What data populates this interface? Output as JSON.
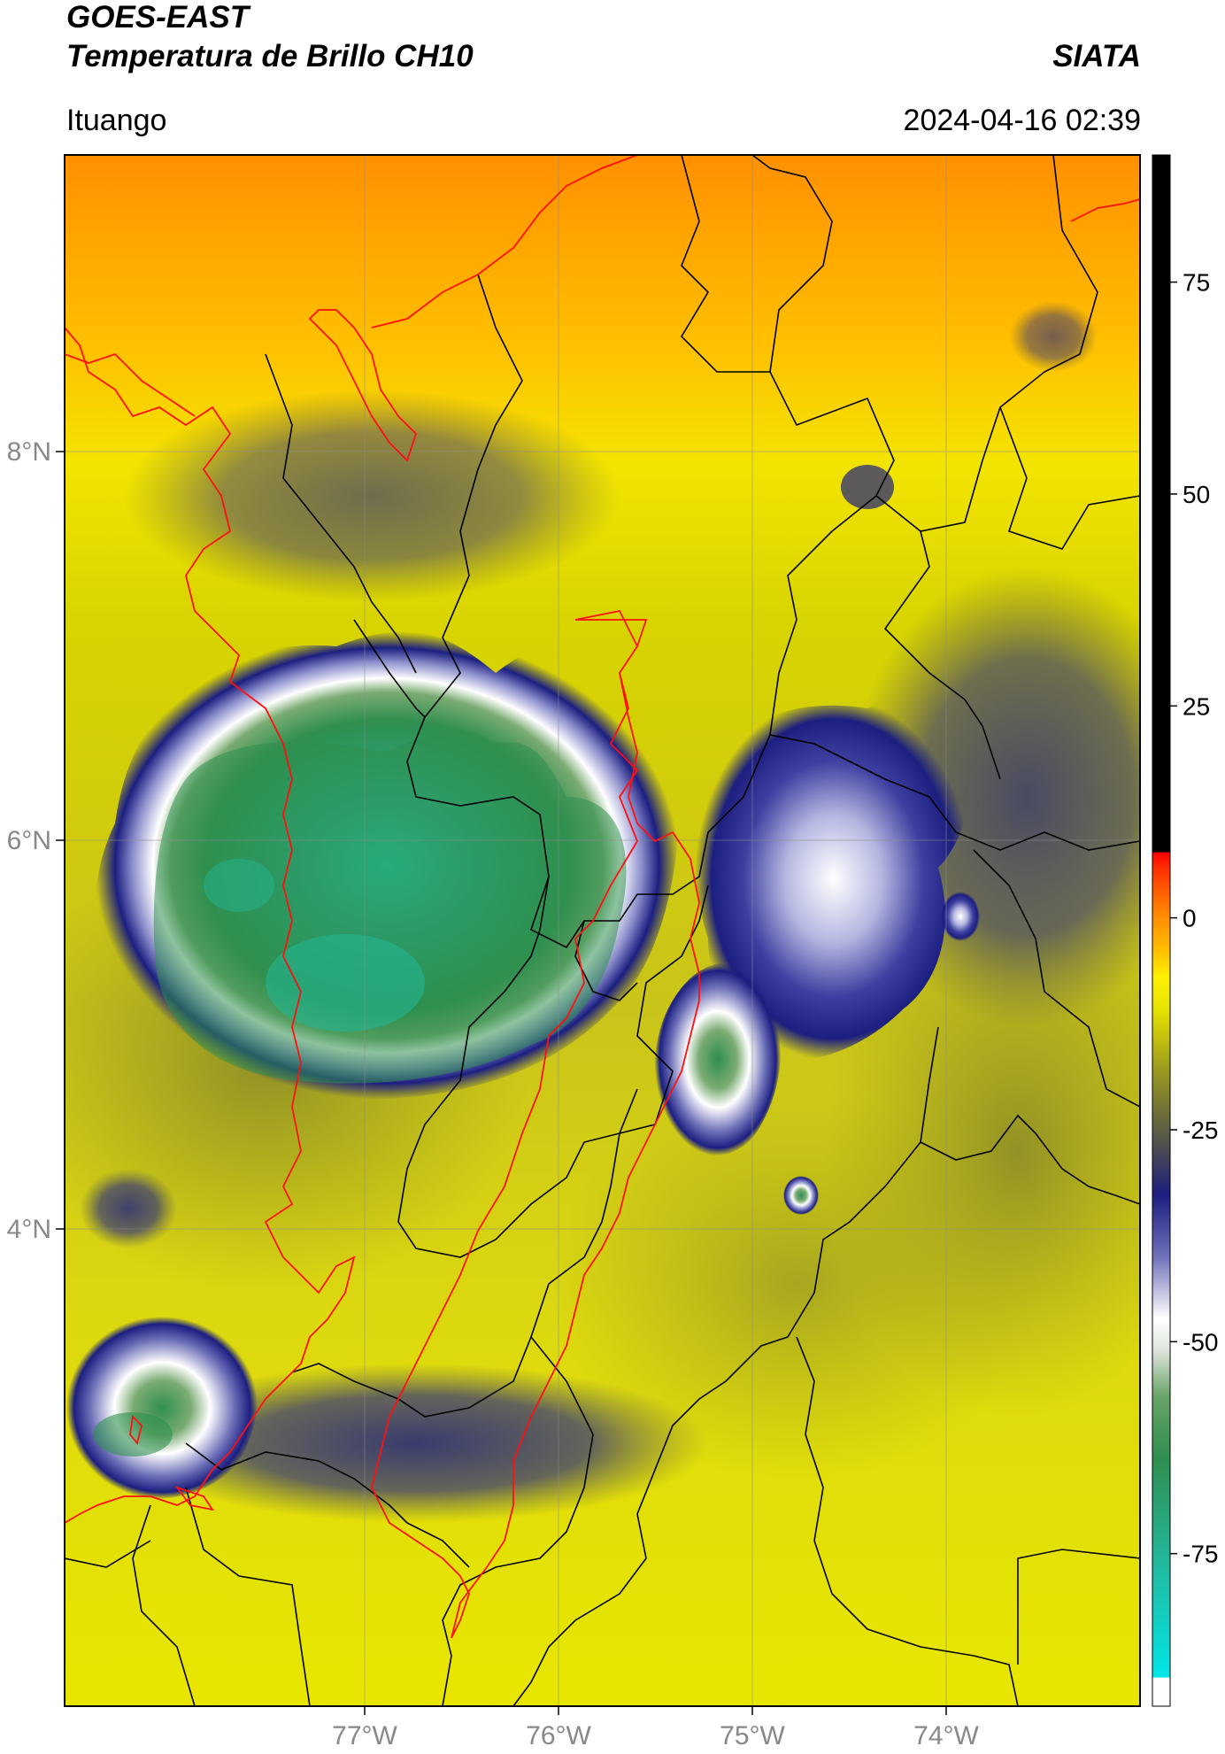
{
  "header": {
    "satellite": "GOES-EAST",
    "product": "Temperatura de Brillo CH10",
    "brand": "SIATA",
    "region": "Ituango",
    "datetime": "2024-04-16 02:39"
  },
  "map": {
    "lon_ticks": [
      "77°W",
      "76°W",
      "75°W",
      "74°W"
    ],
    "lat_ticks": [
      "8°N",
      "6°N",
      "4°N"
    ],
    "colors": {
      "cold_green": "#2f8f4f",
      "cold_cyan": "#1fcfb0",
      "white": "#ffffff",
      "blue": "#1c1f80",
      "olive": "#9a9a1e",
      "yellow": "#f5f000",
      "orange": "#ff9a00",
      "border_dept": "#000000",
      "border_country": "#ff0000"
    }
  },
  "colorbar": {
    "ticks": [
      "75",
      "50",
      "25",
      "0",
      "-25",
      "-50",
      "-75"
    ],
    "tick_values": [
      75,
      50,
      25,
      0,
      -25,
      -50,
      -75
    ],
    "range": [
      -93,
      90
    ]
  }
}
